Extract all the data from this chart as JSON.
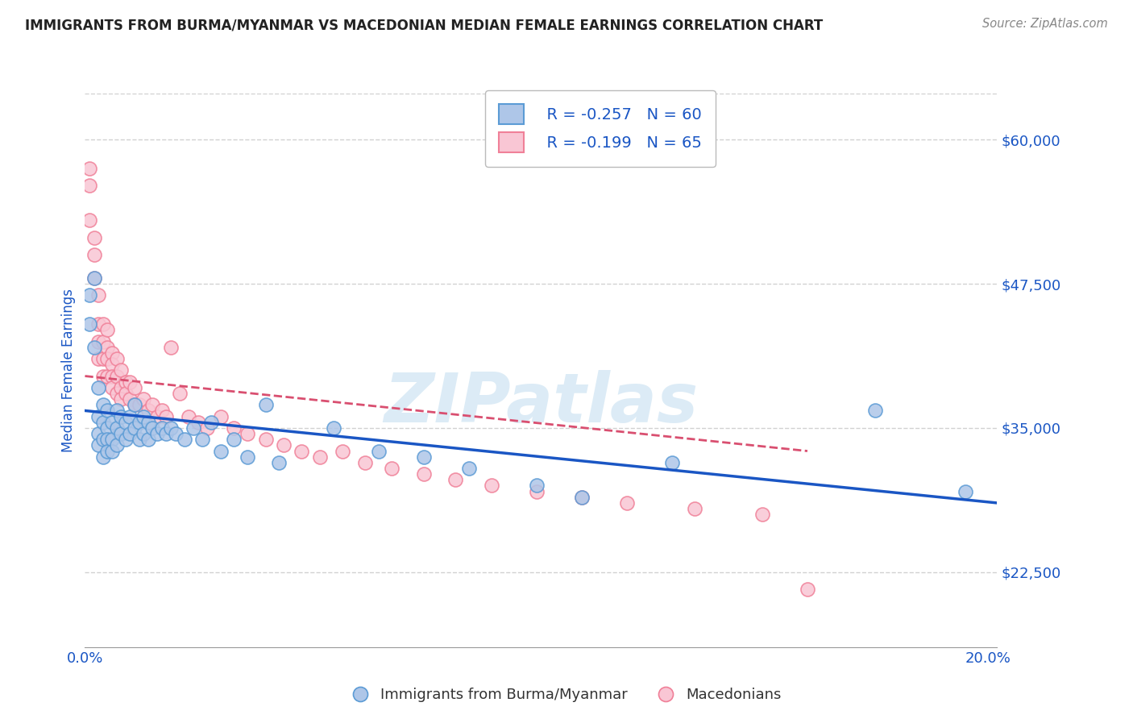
{
  "title": "IMMIGRANTS FROM BURMA/MYANMAR VS MACEDONIAN MEDIAN FEMALE EARNINGS CORRELATION CHART",
  "source": "Source: ZipAtlas.com",
  "ylabel": "Median Female Earnings",
  "xlim": [
    0.0,
    0.202
  ],
  "ylim": [
    16000,
    64000
  ],
  "yticks": [
    22500,
    35000,
    47500,
    60000
  ],
  "ytick_labels": [
    "$22,500",
    "$35,000",
    "$47,500",
    "$60,000"
  ],
  "xticks": [
    0.0,
    0.05,
    0.1,
    0.15,
    0.2
  ],
  "xtick_labels": [
    "0.0%",
    "",
    "",
    "",
    "20.0%"
  ],
  "blue_marker_face": "#aec6e8",
  "blue_marker_edge": "#5b9bd5",
  "pink_marker_face": "#f9c6d4",
  "pink_marker_edge": "#f08098",
  "trend_blue": "#1a56c4",
  "trend_pink": "#d94f70",
  "watermark": "ZIPatlas",
  "legend_blue_r": "R = -0.257",
  "legend_blue_n": "N = 60",
  "legend_pink_r": "R = -0.199",
  "legend_pink_n": "N = 65",
  "legend_label_blue": "Immigrants from Burma/Myanmar",
  "legend_label_pink": "Macedonians",
  "blue_scatter_x": [
    0.001,
    0.001,
    0.002,
    0.002,
    0.003,
    0.003,
    0.003,
    0.003,
    0.004,
    0.004,
    0.004,
    0.004,
    0.005,
    0.005,
    0.005,
    0.005,
    0.006,
    0.006,
    0.006,
    0.007,
    0.007,
    0.007,
    0.008,
    0.008,
    0.009,
    0.009,
    0.01,
    0.01,
    0.011,
    0.011,
    0.012,
    0.012,
    0.013,
    0.013,
    0.014,
    0.014,
    0.015,
    0.016,
    0.017,
    0.018,
    0.019,
    0.02,
    0.022,
    0.024,
    0.026,
    0.028,
    0.03,
    0.033,
    0.036,
    0.04,
    0.043,
    0.055,
    0.065,
    0.075,
    0.085,
    0.1,
    0.11,
    0.13,
    0.175,
    0.195
  ],
  "blue_scatter_y": [
    46500,
    44000,
    48000,
    42000,
    38500,
    36000,
    34500,
    33500,
    37000,
    35500,
    34000,
    32500,
    36500,
    35000,
    34000,
    33000,
    35500,
    34000,
    33000,
    36500,
    35000,
    33500,
    36000,
    34500,
    35500,
    34000,
    36000,
    34500,
    37000,
    35000,
    35500,
    34000,
    36000,
    34500,
    35500,
    34000,
    35000,
    34500,
    35000,
    34500,
    35000,
    34500,
    34000,
    35000,
    34000,
    35500,
    33000,
    34000,
    32500,
    37000,
    32000,
    35000,
    33000,
    32500,
    31500,
    30000,
    29000,
    32000,
    36500,
    29500
  ],
  "pink_scatter_x": [
    0.001,
    0.001,
    0.001,
    0.002,
    0.002,
    0.002,
    0.003,
    0.003,
    0.003,
    0.003,
    0.004,
    0.004,
    0.004,
    0.004,
    0.005,
    0.005,
    0.005,
    0.005,
    0.006,
    0.006,
    0.006,
    0.006,
    0.007,
    0.007,
    0.007,
    0.008,
    0.008,
    0.008,
    0.009,
    0.009,
    0.01,
    0.01,
    0.011,
    0.011,
    0.012,
    0.013,
    0.014,
    0.015,
    0.016,
    0.017,
    0.018,
    0.019,
    0.021,
    0.023,
    0.025,
    0.027,
    0.03,
    0.033,
    0.036,
    0.04,
    0.044,
    0.048,
    0.052,
    0.057,
    0.062,
    0.068,
    0.075,
    0.082,
    0.09,
    0.1,
    0.11,
    0.12,
    0.135,
    0.15,
    0.16
  ],
  "pink_scatter_y": [
    57500,
    56000,
    53000,
    51500,
    50000,
    48000,
    46500,
    44000,
    42500,
    41000,
    44000,
    42500,
    41000,
    39500,
    43500,
    42000,
    41000,
    39500,
    41500,
    40500,
    39500,
    38500,
    41000,
    39500,
    38000,
    40000,
    38500,
    37500,
    39000,
    38000,
    39000,
    37500,
    38500,
    37000,
    37000,
    37500,
    36500,
    37000,
    36000,
    36500,
    36000,
    42000,
    38000,
    36000,
    35500,
    35000,
    36000,
    35000,
    34500,
    34000,
    33500,
    33000,
    32500,
    33000,
    32000,
    31500,
    31000,
    30500,
    30000,
    29500,
    29000,
    28500,
    28000,
    27500,
    21000
  ],
  "blue_line_x0": 0.0,
  "blue_line_x1": 0.202,
  "blue_line_y0": 36500,
  "blue_line_y1": 28500,
  "pink_line_x0": 0.0,
  "pink_line_x1": 0.16,
  "pink_line_y0": 39500,
  "pink_line_y1": 33000,
  "background_color": "#ffffff",
  "grid_color": "#cccccc",
  "title_color": "#222222",
  "tick_label_color": "#1a56c4",
  "axis_label_color": "#1a56c4",
  "legend_text_color": "#1a56c4"
}
